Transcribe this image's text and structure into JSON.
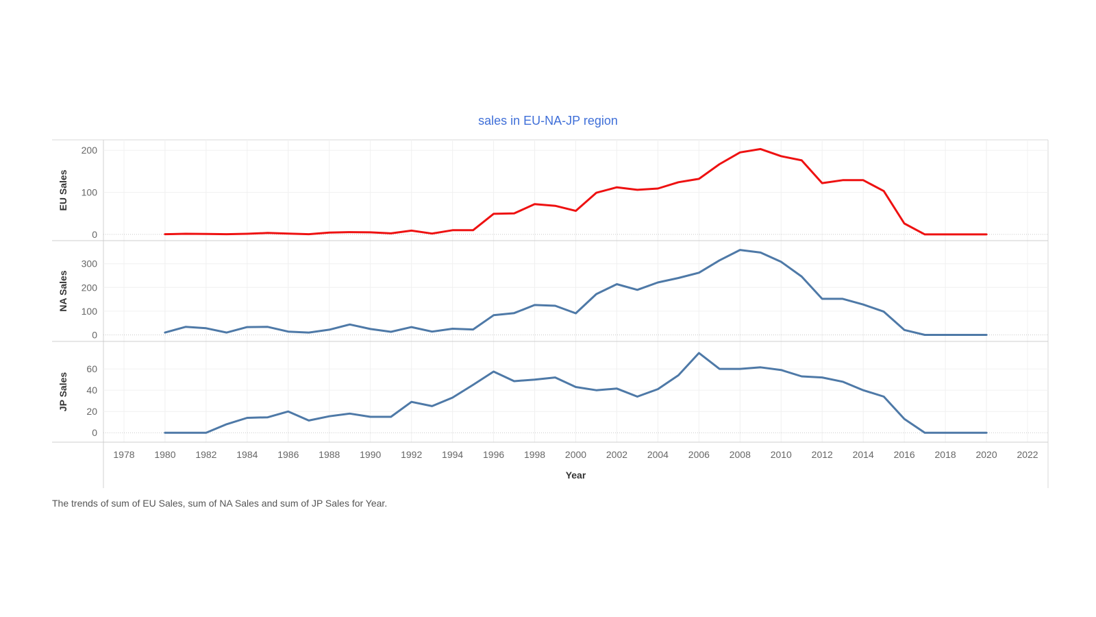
{
  "chart_data": {
    "type": "line",
    "title": "sales in EU-NA-JP region",
    "caption": "The trends of sum of EU Sales, sum of NA Sales and sum of JP Sales for Year.",
    "xlabel": "Year",
    "xlim": [
      1977,
      2023
    ],
    "x_ticks": [
      1978,
      1980,
      1982,
      1984,
      1986,
      1988,
      1990,
      1992,
      1994,
      1996,
      1998,
      2000,
      2002,
      2004,
      2006,
      2008,
      2010,
      2012,
      2014,
      2016,
      2018,
      2020,
      2022
    ],
    "x": [
      1980,
      1981,
      1982,
      1983,
      1984,
      1985,
      1986,
      1987,
      1988,
      1989,
      1990,
      1991,
      1992,
      1993,
      1994,
      1995,
      1996,
      1997,
      1998,
      1999,
      2000,
      2001,
      2002,
      2003,
      2004,
      2005,
      2006,
      2007,
      2008,
      2009,
      2010,
      2011,
      2012,
      2013,
      2014,
      2015,
      2016,
      2017,
      2018,
      2019,
      2020
    ],
    "grid": true,
    "panels": [
      {
        "ylabel": "EU Sales",
        "color": "#ee1111",
        "ylim": [
          -5,
          215
        ],
        "y_ticks": [
          0,
          100,
          200
        ],
        "values": [
          0.5,
          1.5,
          1,
          0.5,
          1.5,
          3.5,
          2,
          0.5,
          4.5,
          5.5,
          5,
          2.5,
          9,
          2,
          10,
          10,
          49,
          50,
          72,
          68,
          56,
          99,
          112,
          106,
          109,
          124,
          132,
          167,
          195,
          203,
          186,
          176,
          122,
          129,
          129,
          103,
          26,
          0,
          0,
          0,
          0
        ]
      },
      {
        "ylabel": "NA Sales",
        "color": "#4e79a7",
        "ylim": [
          -10,
          380
        ],
        "y_ticks": [
          0,
          100,
          200,
          300
        ],
        "values": [
          10,
          34,
          28,
          10,
          33,
          34,
          14,
          10,
          22,
          44,
          25,
          13,
          33,
          14,
          26,
          23,
          83,
          92,
          126,
          123,
          91,
          172,
          214,
          190,
          221,
          240,
          262,
          314,
          358,
          347,
          308,
          246,
          152,
          152,
          128,
          98,
          21,
          0,
          0,
          0,
          0
        ]
      },
      {
        "ylabel": "JP Sales",
        "color": "#4e79a7",
        "ylim": [
          -5,
          82
        ],
        "y_ticks": [
          0,
          20,
          40,
          60
        ],
        "values": [
          0,
          0,
          0,
          8,
          14,
          14.5,
          20,
          11.5,
          15.5,
          18,
          15,
          15,
          29,
          25,
          33,
          45,
          57.5,
          48.5,
          50,
          52,
          43,
          40,
          41.5,
          34,
          41,
          54,
          75,
          60,
          60,
          61.5,
          59,
          53,
          52,
          48,
          40,
          34,
          13,
          0,
          0,
          0,
          0
        ]
      }
    ]
  }
}
